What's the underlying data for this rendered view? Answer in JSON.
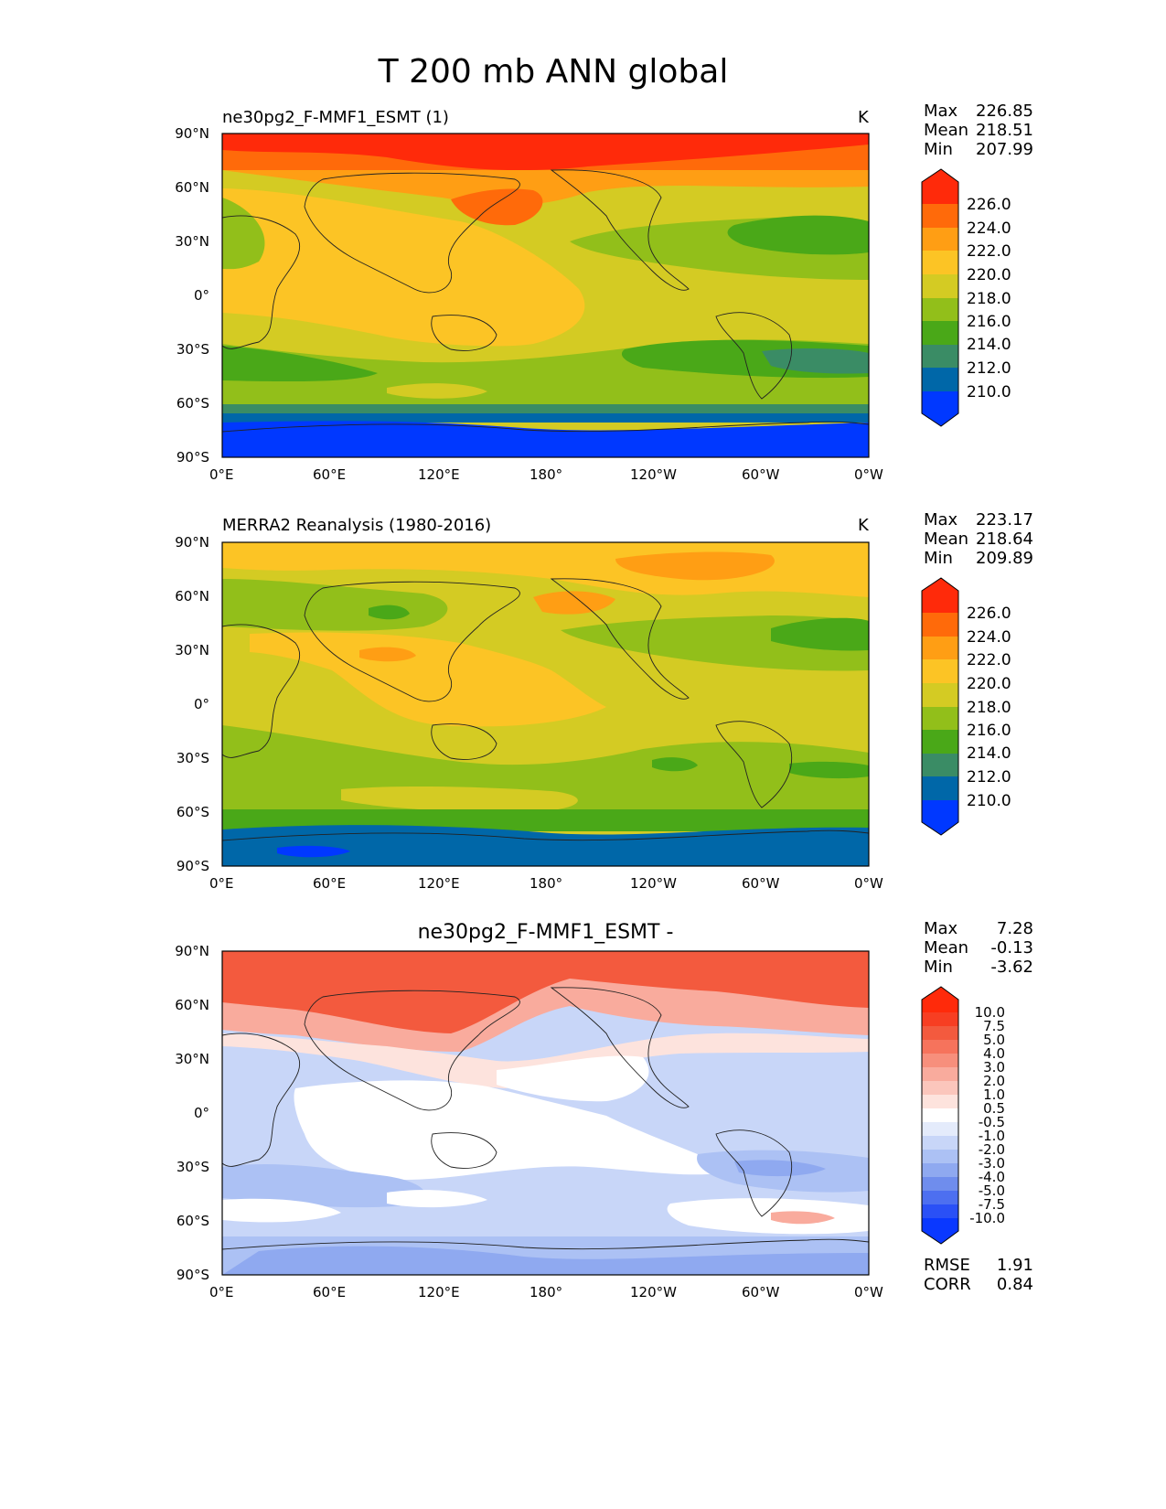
{
  "figure_title": "T 200 mb ANN global",
  "lon_ticks": [
    "0°E",
    "60°E",
    "120°E",
    "180°",
    "120°W",
    "60°W",
    "0°W"
  ],
  "lat_ticks": [
    "90°N",
    "60°N",
    "30°N",
    "0°",
    "30°S",
    "60°S",
    "90°S"
  ],
  "panels": [
    {
      "title_left": "ne30pg2_F-MMF1_ESMT (1)",
      "title_center": "",
      "units": "K",
      "stats": [
        {
          "label": "Max",
          "value": "226.85"
        },
        {
          "label": "Mean",
          "value": "218.51"
        },
        {
          "label": "Min",
          "value": "207.99"
        }
      ],
      "colorbar": {
        "labels": [
          "226.0",
          "224.0",
          "222.0",
          "220.0",
          "218.0",
          "216.0",
          "214.0",
          "212.0",
          "210.0"
        ],
        "colors": [
          "#ff2a0a",
          "#ff6a0a",
          "#ff9e14",
          "#fcc425",
          "#d4cb23",
          "#92bf1a",
          "#4aa818",
          "#3a8c65",
          "#0067a8",
          "#0038ff"
        ]
      }
    },
    {
      "title_left": "MERRA2 Reanalysis (1980-2016)",
      "title_center": "",
      "units": "K",
      "stats": [
        {
          "label": "Max",
          "value": "223.17"
        },
        {
          "label": "Mean",
          "value": "218.64"
        },
        {
          "label": "Min",
          "value": "209.89"
        }
      ],
      "colorbar": {
        "labels": [
          "226.0",
          "224.0",
          "222.0",
          "220.0",
          "218.0",
          "216.0",
          "214.0",
          "212.0",
          "210.0"
        ],
        "colors": [
          "#ff2a0a",
          "#ff6a0a",
          "#ff9e14",
          "#fcc425",
          "#d4cb23",
          "#92bf1a",
          "#4aa818",
          "#3a8c65",
          "#0067a8",
          "#0038ff"
        ]
      }
    },
    {
      "title_left": "",
      "title_center": "ne30pg2_F-MMF1_ESMT -",
      "units": "",
      "stats": [
        {
          "label": "Max",
          "value": "7.28"
        },
        {
          "label": "Mean",
          "value": "-0.13"
        },
        {
          "label": "Min",
          "value": "-3.62"
        }
      ],
      "extra_stats": [
        {
          "label": "RMSE",
          "value": "1.91"
        },
        {
          "label": "CORR",
          "value": "0.84"
        }
      ],
      "colorbar": {
        "labels": [
          "10.0",
          "7.5",
          "5.0",
          "4.0",
          "3.0",
          "2.0",
          "1.0",
          "0.5",
          "-0.5",
          "-1.0",
          "-2.0",
          "-3.0",
          "-4.0",
          "-5.0",
          "-7.5",
          "-10.0"
        ],
        "colors": [
          "#ff2a0a",
          "#f73e22",
          "#f35a3e",
          "#f6735c",
          "#f78f7c",
          "#f9ab9d",
          "#fbc6bc",
          "#fde3dd",
          "#ffffff",
          "#e4ebfb",
          "#c8d6f8",
          "#acc1f4",
          "#8fa9f0",
          "#6f8ded",
          "#4d6ff0",
          "#2a50f6",
          "#0a38ff"
        ]
      }
    }
  ],
  "panel_colors": {
    "model_top": [
      "#ff2a0a",
      "#ff6a0a",
      "#ff9e14",
      "#fcc425"
    ],
    "model_mid": [
      "#fcc425",
      "#d4cb23",
      "#92bf1a",
      "#4aa818"
    ],
    "model_bot": [
      "#4aa818",
      "#3a8c65",
      "#0067a8",
      "#0038ff"
    ],
    "ref": [
      "#fcc425",
      "#d4cb23",
      "#92bf1a",
      "#4aa818",
      "#0067a8",
      "#0038ff"
    ],
    "diff": [
      "#f35a3e",
      "#f9ab9d",
      "#ffffff",
      "#c8d6f8",
      "#8fa9f0"
    ]
  }
}
